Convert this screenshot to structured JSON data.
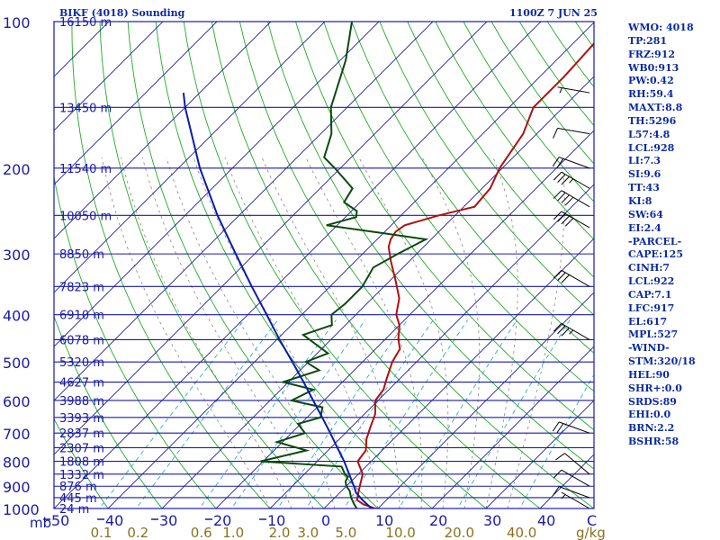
{
  "header": {
    "title": "BIKF (4018) Sounding",
    "time": "1100Z  7 JUN 25"
  },
  "stats": [
    "WMO: 4018",
    "TP:281",
    "FRZ:912",
    "WB0:913",
    "PW:0.42",
    "RH:59.4",
    "MAXT:8.8",
    "TH:5296",
    "L57:4.8",
    "LCL:928",
    "LI:7.3",
    "SI:9.6",
    "TT:43",
    "KI:8",
    "SW:64",
    "EI:2.4",
    "-PARCEL-",
    "CAPE:125",
    "CINH:7",
    "LCL:922",
    "CAP:7.1",
    "LFC:917",
    "EL:617",
    "MPL:527",
    "-WIND-",
    "STM:320/18",
    "HEL:90",
    "SHR+:0.0",
    "SRDS:89",
    "EHI:0.0",
    "BRN:2.2",
    "BSHR:58"
  ],
  "colors": {
    "isobar": "#1a1aa8",
    "isotherm": "#1a1aa8",
    "dry_adiabat": "#22aa22",
    "moist_adiabat": "#888888",
    "mixing_ratio": "#33aacc",
    "temperature": "#b01010",
    "dewpoint": "#0b4a0b",
    "parcel": "#0b1ca8",
    "label": "#1a1aa8",
    "mixing_label": "#8a7020"
  },
  "chart_data": {
    "type": "line",
    "title": "BIKF (4018) Sounding",
    "x_axis_unit": "C",
    "y_axis_unit": "mb",
    "xlim": [
      -50,
      50
    ],
    "ylim": [
      1000,
      100
    ],
    "y_scale": "log",
    "pressure_ticks": [
      "100",
      "200",
      "300",
      "400",
      "500",
      "600",
      "700",
      "800",
      "900",
      "1000"
    ],
    "temp_ticks": [
      "50",
      "40",
      "30",
      "20",
      "10",
      "0",
      "10",
      "20",
      "30",
      "40"
    ],
    "mixing_ratio_ticks": [
      "0.1",
      "0.2",
      "0.6",
      "1.0",
      "2.0",
      "3.0",
      "5.0",
      "10.0",
      "20.0",
      "40.0"
    ],
    "mixing_ratio_unit": "g/kg",
    "height_labels": [
      {
        "p": 100,
        "h": "16150 m"
      },
      {
        "p": 150,
        "h": "13450 m"
      },
      {
        "p": 200,
        "h": "11540 m"
      },
      {
        "p": 250,
        "h": "10050 m"
      },
      {
        "p": 300,
        "h": "8850 m"
      },
      {
        "p": 350,
        "h": "7823 m"
      },
      {
        "p": 400,
        "h": "6910 m"
      },
      {
        "p": 450,
        "h": "6078 m"
      },
      {
        "p": 500,
        "h": "5320 m"
      },
      {
        "p": 550,
        "h": "4627 m"
      },
      {
        "p": 600,
        "h": "3988 m"
      },
      {
        "p": 650,
        "h": "3393 m"
      },
      {
        "p": 700,
        "h": "2837 m"
      },
      {
        "p": 750,
        "h": "2307 m"
      },
      {
        "p": 800,
        "h": "1808 m"
      },
      {
        "p": 850,
        "h": "1332 m"
      },
      {
        "p": 900,
        "h": "876 m"
      },
      {
        "p": 950,
        "h": "445 m"
      },
      {
        "p": 1000,
        "h": "24 m"
      }
    ],
    "series": [
      {
        "key": "temperature",
        "points": [
          [
            1007,
            10.5
          ],
          [
            980,
            6.5
          ],
          [
            960,
            4.5
          ],
          [
            930,
            3.5
          ],
          [
            900,
            2.5
          ],
          [
            870,
            1.5
          ],
          [
            850,
            0.8
          ],
          [
            800,
            -2.5
          ],
          [
            760,
            -3.0
          ],
          [
            720,
            -5.0
          ],
          [
            680,
            -6.5
          ],
          [
            640,
            -8.0
          ],
          [
            600,
            -10.5
          ],
          [
            570,
            -11.0
          ],
          [
            540,
            -12.5
          ],
          [
            500,
            -14.5
          ],
          [
            470,
            -15.5
          ],
          [
            450,
            -17.5
          ],
          [
            420,
            -20.0
          ],
          [
            400,
            -22.5
          ],
          [
            370,
            -25.0
          ],
          [
            340,
            -29.0
          ],
          [
            310,
            -33.5
          ],
          [
            290,
            -36.5
          ],
          [
            280,
            -37.5
          ],
          [
            270,
            -38.0
          ],
          [
            262,
            -37.5
          ],
          [
            250,
            -33.0
          ],
          [
            240,
            -28.0
          ],
          [
            220,
            -28.5
          ],
          [
            200,
            -30.5
          ],
          [
            170,
            -32.5
          ],
          [
            150,
            -35.5
          ],
          [
            130,
            -35.5
          ],
          [
            100,
            -36.5
          ]
        ]
      },
      {
        "key": "dewpoint",
        "points": [
          [
            1007,
            6.5
          ],
          [
            980,
            4.8
          ],
          [
            950,
            3.0
          ],
          [
            920,
            1.5
          ],
          [
            900,
            0.0
          ],
          [
            880,
            -1.0
          ],
          [
            860,
            -1.5
          ],
          [
            850,
            -2.5
          ],
          [
            820,
            -4.5
          ],
          [
            800,
            -20.5
          ],
          [
            760,
            -14.0
          ],
          [
            730,
            -21.0
          ],
          [
            700,
            -17.5
          ],
          [
            670,
            -20.5
          ],
          [
            650,
            -17.5
          ],
          [
            620,
            -19.0
          ],
          [
            600,
            -26.0
          ],
          [
            570,
            -24.0
          ],
          [
            550,
            -31.0
          ],
          [
            520,
            -26.5
          ],
          [
            500,
            -30.5
          ],
          [
            480,
            -28.0
          ],
          [
            440,
            -36.0
          ],
          [
            420,
            -32.5
          ],
          [
            400,
            -34.5
          ],
          [
            380,
            -34.0
          ],
          [
            350,
            -34.0
          ],
          [
            320,
            -35.5
          ],
          [
            300,
            -33.5
          ],
          [
            280,
            -31.0
          ],
          [
            272,
            -40.0
          ],
          [
            262,
            -52.0
          ],
          [
            252,
            -48.0
          ],
          [
            245,
            -49.0
          ],
          [
            235,
            -53.0
          ],
          [
            220,
            -54.0
          ],
          [
            200,
            -61.0
          ],
          [
            190,
            -65.0
          ],
          [
            170,
            -68.0
          ],
          [
            150,
            -73.0
          ],
          [
            120,
            -79.0
          ],
          [
            100,
            -85.0
          ]
        ]
      },
      {
        "key": "parcel",
        "points": [
          [
            1000,
            8.8
          ],
          [
            960,
            5.5
          ],
          [
            928,
            3.0
          ],
          [
            900,
            1.4
          ],
          [
            850,
            -1.7
          ],
          [
            800,
            -5.0
          ],
          [
            750,
            -8.8
          ],
          [
            700,
            -12.8
          ],
          [
            650,
            -17.2
          ],
          [
            600,
            -22.0
          ],
          [
            550,
            -27.2
          ],
          [
            500,
            -33.0
          ],
          [
            450,
            -39.5
          ],
          [
            400,
            -46.5
          ],
          [
            350,
            -54.5
          ],
          [
            300,
            -63.5
          ],
          [
            250,
            -74.0
          ],
          [
            200,
            -86.0
          ],
          [
            150,
            -100.0
          ],
          [
            140,
            -103.0
          ]
        ]
      }
    ],
    "wind_barbs": [
      {
        "p": 1000,
        "dir": 300,
        "kt": 5
      },
      {
        "p": 950,
        "dir": 290,
        "kt": 10
      },
      {
        "p": 900,
        "dir": 300,
        "kt": 10
      },
      {
        "p": 850,
        "dir": 310,
        "kt": 10
      },
      {
        "p": 700,
        "dir": 290,
        "kt": 20
      },
      {
        "p": 450,
        "dir": 300,
        "kt": 35
      },
      {
        "p": 350,
        "dir": 300,
        "kt": 30
      },
      {
        "p": 265,
        "dir": 300,
        "kt": 40
      },
      {
        "p": 240,
        "dir": 300,
        "kt": 40
      },
      {
        "p": 220,
        "dir": 300,
        "kt": 35
      },
      {
        "p": 200,
        "dir": 290,
        "kt": 20
      },
      {
        "p": 170,
        "dir": 280,
        "kt": 10
      },
      {
        "p": 140,
        "dir": 280,
        "kt": 5
      }
    ]
  }
}
